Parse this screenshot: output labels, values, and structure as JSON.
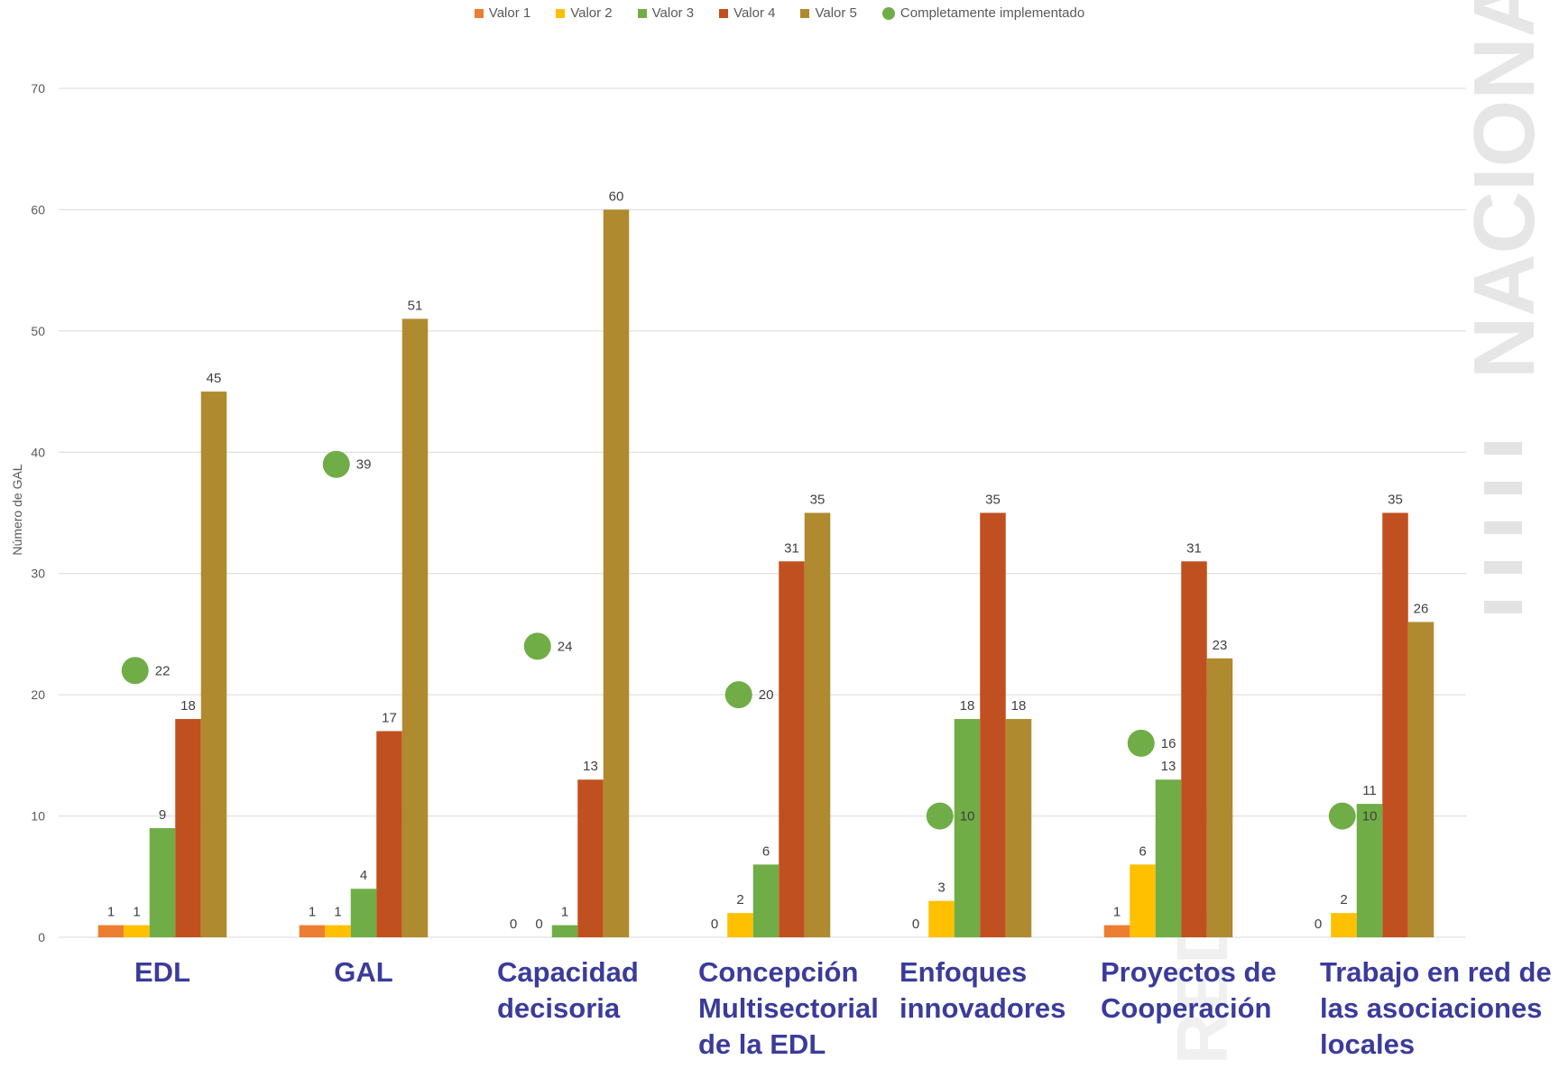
{
  "chart_data": {
    "type": "bar",
    "ylabel": "Número de GAL",
    "ylim": [
      0,
      70
    ],
    "yticks": [
      0,
      10,
      20,
      30,
      40,
      50,
      60,
      70
    ],
    "grid": true,
    "legend_position": "top-center",
    "categories": [
      [
        "EDL"
      ],
      [
        "GAL"
      ],
      [
        "Capacidad",
        "decisoria"
      ],
      [
        "Concepción",
        "Multisectorial",
        "de la EDL"
      ],
      [
        "Enfoques",
        "innovadores"
      ],
      [
        "Proyectos de",
        "Cooperación"
      ],
      [
        "Trabajo en red de",
        "las asociaciones",
        "locales"
      ]
    ],
    "series": [
      {
        "name": "Valor 1",
        "color": "#ED7D31",
        "values": [
          1,
          1,
          0,
          0,
          0,
          1,
          0
        ]
      },
      {
        "name": "Valor 2",
        "color": "#FFC000",
        "values": [
          1,
          1,
          0,
          2,
          3,
          6,
          2
        ]
      },
      {
        "name": "Valor 3",
        "color": "#70AD47",
        "values": [
          9,
          4,
          1,
          6,
          18,
          13,
          11
        ]
      },
      {
        "name": "Valor 4",
        "color": "#C0501F",
        "values": [
          18,
          17,
          13,
          31,
          35,
          31,
          35
        ]
      },
      {
        "name": "Valor 5",
        "color": "#B08A2E",
        "values": [
          45,
          51,
          60,
          35,
          18,
          23,
          26
        ]
      }
    ],
    "markers": {
      "name": "Completamente implementado",
      "color": "#70AD47",
      "values": [
        22,
        39,
        24,
        20,
        10,
        16,
        10
      ]
    }
  },
  "watermark": {
    "text": "NACIONAL",
    "text2": "RED"
  },
  "colors": {
    "category_label": "#3B3B9C",
    "axis_text": "#595959",
    "grid": "#D9D9D9"
  }
}
